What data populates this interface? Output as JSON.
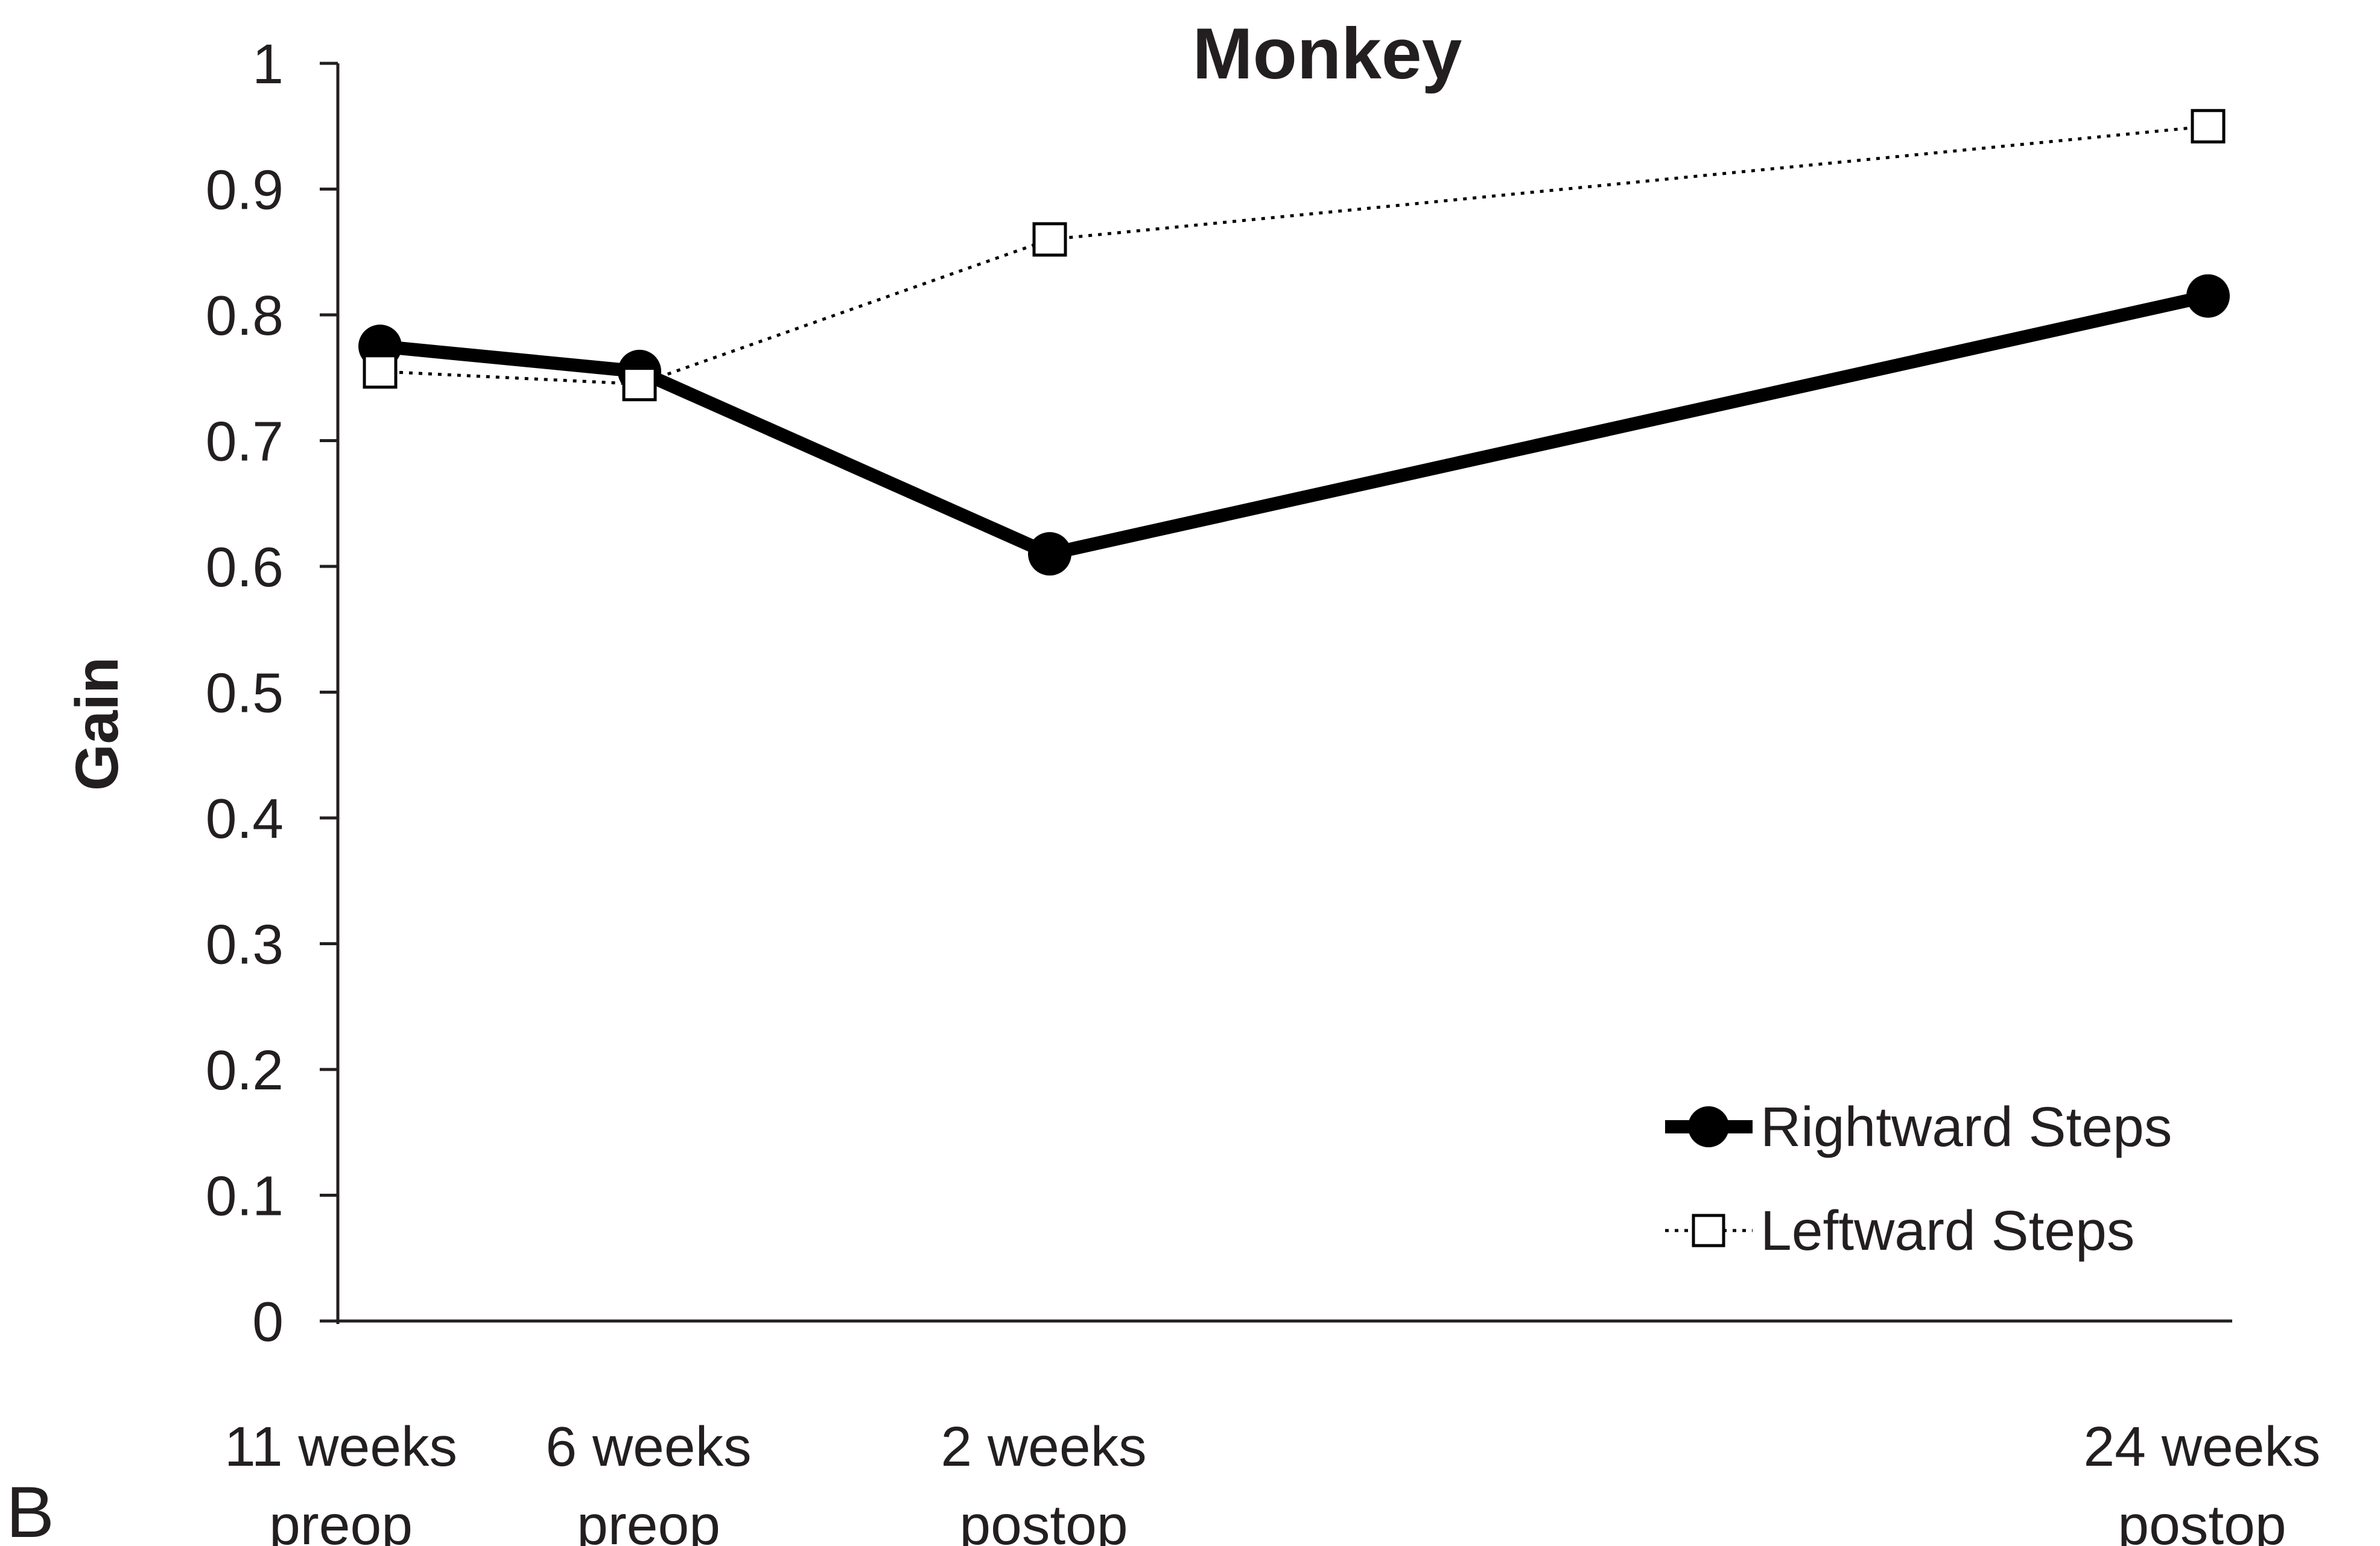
{
  "panel_label": "B",
  "chart_data": {
    "type": "line",
    "title": "Monkey",
    "xlabel": "",
    "ylabel": "Gain",
    "ylim": [
      0,
      1
    ],
    "yticks": [
      "0",
      "0.1",
      "0.2",
      "0.3",
      "0.4",
      "0.5",
      "0.6",
      "0.7",
      "0.8",
      "0.9",
      "1"
    ],
    "categories": [
      [
        "11 weeks",
        "preop"
      ],
      [
        "6 weeks",
        "preop"
      ],
      [
        "2 weeks",
        "postop"
      ],
      [
        "24 weeks",
        "postop"
      ]
    ],
    "x_weeks_relative_to_surgery": [
      -11,
      -6,
      2,
      24
    ],
    "series": [
      {
        "name": "Rightward Steps",
        "values": [
          0.775,
          0.755,
          0.61,
          0.815
        ],
        "color": "#000000",
        "marker": "filled-circle",
        "line_style": "solid-thick"
      },
      {
        "name": "Leftward Steps",
        "values": [
          0.755,
          0.745,
          0.86,
          0.95
        ],
        "color": "#000000",
        "marker": "open-square",
        "line_style": "dotted"
      }
    ],
    "grid": false,
    "legend_position": "bottom-right"
  }
}
